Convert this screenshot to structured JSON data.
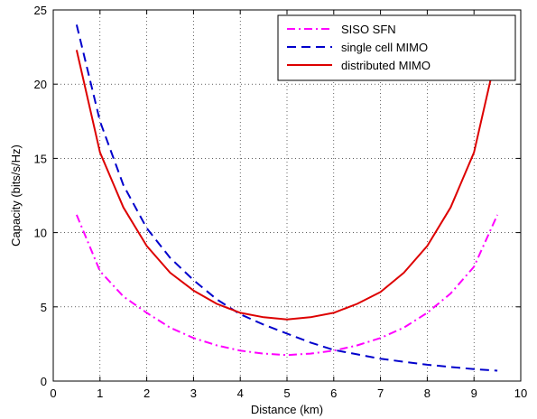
{
  "chart_data": {
    "type": "line",
    "title": "",
    "xlabel": "Distance (km)",
    "ylabel": "Capacity (bits/s/Hz)",
    "xlim": [
      0,
      10
    ],
    "ylim": [
      0,
      25
    ],
    "xticks": [
      0,
      1,
      2,
      3,
      4,
      5,
      6,
      7,
      8,
      9,
      10
    ],
    "yticks": [
      0,
      5,
      10,
      15,
      20,
      25
    ],
    "grid": true,
    "legend_position": "top-right",
    "x": [
      0.5,
      1.0,
      1.5,
      2.0,
      2.5,
      3.0,
      3.5,
      4.0,
      4.5,
      5.0,
      5.5,
      6.0,
      6.5,
      7.0,
      7.5,
      8.0,
      8.5,
      9.0,
      9.5
    ],
    "series": [
      {
        "name": "SISO SFN",
        "color": "#ff00ff",
        "dash": "dash-dot",
        "values": [
          11.2,
          7.4,
          5.7,
          4.6,
          3.6,
          2.9,
          2.4,
          2.05,
          1.85,
          1.75,
          1.85,
          2.05,
          2.4,
          2.9,
          3.6,
          4.6,
          5.9,
          7.7,
          11.2
        ]
      },
      {
        "name": "single cell MIMO",
        "color": "#0000cc",
        "dash": "dashed",
        "values": [
          24.0,
          17.5,
          13.2,
          10.3,
          8.3,
          6.8,
          5.5,
          4.5,
          3.8,
          3.2,
          2.6,
          2.1,
          1.8,
          1.5,
          1.3,
          1.1,
          0.95,
          0.8,
          0.7
        ]
      },
      {
        "name": "distributed MIMO",
        "color": "#dd0000",
        "dash": "solid",
        "values": [
          22.3,
          15.4,
          11.7,
          9.1,
          7.3,
          6.1,
          5.2,
          4.6,
          4.3,
          4.15,
          4.3,
          4.6,
          5.2,
          6.0,
          7.3,
          9.1,
          11.7,
          15.4,
          22.3
        ]
      }
    ]
  }
}
